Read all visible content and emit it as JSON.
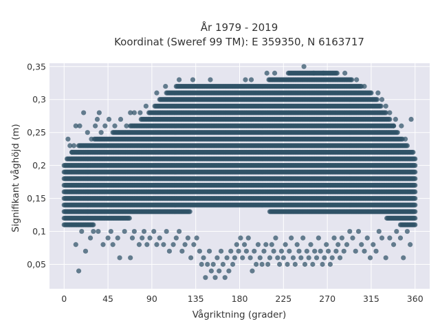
{
  "chart_data": {
    "type": "scatter",
    "title_lines": [
      "År 1979 - 2019",
      "Koordinat (Sweref 99 TM): E 359350, N 6163717"
    ],
    "xlabel": "Vågriktning (grader)",
    "ylabel": "Signifikant våghöjd (m)",
    "xlim": [
      -15,
      375
    ],
    "ylim": [
      0.013,
      0.355
    ],
    "xticks": [
      0,
      45,
      90,
      135,
      180,
      225,
      270,
      315,
      360
    ],
    "xtick_labels": [
      "0",
      "45",
      "90",
      "135",
      "180",
      "225",
      "270",
      "315",
      "360"
    ],
    "yticks": [
      0.05,
      0.1,
      0.15,
      0.2,
      0.25,
      0.3,
      0.35
    ],
    "ytick_labels": [
      "0,05",
      "0,1",
      "0,15",
      "0,2",
      "0,25",
      "0,3",
      "0,35"
    ],
    "grid": true,
    "point_color": "#2f5266",
    "direction_step": 1,
    "height_step": 0.01,
    "envelope": {
      "direction": [
        0,
        10,
        20,
        40,
        60,
        75,
        90,
        100,
        120,
        140,
        160,
        180,
        200,
        220,
        240,
        255,
        270,
        290,
        300,
        320,
        340,
        350,
        360
      ],
      "upper_height": [
        0.2,
        0.22,
        0.23,
        0.24,
        0.25,
        0.26,
        0.28,
        0.3,
        0.32,
        0.32,
        0.32,
        0.32,
        0.32,
        0.33,
        0.34,
        0.34,
        0.34,
        0.33,
        0.32,
        0.3,
        0.25,
        0.23,
        0.21
      ],
      "lower_height": [
        0.11,
        0.11,
        0.11,
        0.12,
        0.12,
        0.13,
        0.13,
        0.13,
        0.13,
        0.14,
        0.14,
        0.14,
        0.14,
        0.13,
        0.13,
        0.13,
        0.13,
        0.13,
        0.13,
        0.13,
        0.12,
        0.11,
        0.11
      ]
    },
    "sparse_points": [
      [
        15,
        0.04
      ],
      [
        22,
        0.07
      ],
      [
        27,
        0.09
      ],
      [
        12,
        0.08
      ],
      [
        18,
        0.1
      ],
      [
        30,
        0.1
      ],
      [
        35,
        0.1
      ],
      [
        40,
        0.08
      ],
      [
        45,
        0.09
      ],
      [
        48,
        0.1
      ],
      [
        50,
        0.08
      ],
      [
        55,
        0.09
      ],
      [
        57,
        0.06
      ],
      [
        62,
        0.1
      ],
      [
        68,
        0.06
      ],
      [
        70,
        0.09
      ],
      [
        72,
        0.1
      ],
      [
        77,
        0.08
      ],
      [
        80,
        0.09
      ],
      [
        82,
        0.1
      ],
      [
        85,
        0.08
      ],
      [
        88,
        0.09
      ],
      [
        92,
        0.1
      ],
      [
        95,
        0.08
      ],
      [
        98,
        0.09
      ],
      [
        102,
        0.08
      ],
      [
        105,
        0.1
      ],
      [
        108,
        0.07
      ],
      [
        112,
        0.08
      ],
      [
        115,
        0.09
      ],
      [
        118,
        0.1
      ],
      [
        121,
        0.07
      ],
      [
        124,
        0.08
      ],
      [
        127,
        0.09
      ],
      [
        130,
        0.06
      ],
      [
        133,
        0.08
      ],
      [
        136,
        0.09
      ],
      [
        139,
        0.07
      ],
      [
        141,
        0.05
      ],
      [
        143,
        0.06
      ],
      [
        145,
        0.03
      ],
      [
        147,
        0.05
      ],
      [
        149,
        0.07
      ],
      [
        151,
        0.04
      ],
      [
        153,
        0.05
      ],
      [
        155,
        0.03
      ],
      [
        157,
        0.06
      ],
      [
        159,
        0.04
      ],
      [
        161,
        0.07
      ],
      [
        163,
        0.05
      ],
      [
        165,
        0.03
      ],
      [
        167,
        0.06
      ],
      [
        169,
        0.04
      ],
      [
        171,
        0.07
      ],
      [
        173,
        0.05
      ],
      [
        175,
        0.06
      ],
      [
        177,
        0.08
      ],
      [
        179,
        0.07
      ],
      [
        181,
        0.09
      ],
      [
        183,
        0.06
      ],
      [
        185,
        0.08
      ],
      [
        187,
        0.07
      ],
      [
        189,
        0.09
      ],
      [
        191,
        0.06
      ],
      [
        193,
        0.04
      ],
      [
        195,
        0.07
      ],
      [
        197,
        0.05
      ],
      [
        199,
        0.08
      ],
      [
        201,
        0.06
      ],
      [
        203,
        0.05
      ],
      [
        205,
        0.07
      ],
      [
        207,
        0.08
      ],
      [
        209,
        0.05
      ],
      [
        211,
        0.06
      ],
      [
        213,
        0.08
      ],
      [
        215,
        0.07
      ],
      [
        217,
        0.09
      ],
      [
        219,
        0.06
      ],
      [
        221,
        0.05
      ],
      [
        223,
        0.07
      ],
      [
        225,
        0.06
      ],
      [
        227,
        0.08
      ],
      [
        229,
        0.05
      ],
      [
        231,
        0.07
      ],
      [
        233,
        0.09
      ],
      [
        235,
        0.06
      ],
      [
        237,
        0.05
      ],
      [
        239,
        0.08
      ],
      [
        241,
        0.07
      ],
      [
        243,
        0.06
      ],
      [
        245,
        0.09
      ],
      [
        247,
        0.05
      ],
      [
        249,
        0.07
      ],
      [
        251,
        0.06
      ],
      [
        253,
        0.08
      ],
      [
        255,
        0.05
      ],
      [
        257,
        0.07
      ],
      [
        259,
        0.06
      ],
      [
        261,
        0.09
      ],
      [
        263,
        0.07
      ],
      [
        265,
        0.05
      ],
      [
        267,
        0.06
      ],
      [
        269,
        0.08
      ],
      [
        271,
        0.07
      ],
      [
        273,
        0.05
      ],
      [
        275,
        0.06
      ],
      [
        277,
        0.09
      ],
      [
        279,
        0.07
      ],
      [
        281,
        0.08
      ],
      [
        283,
        0.06
      ],
      [
        285,
        0.09
      ],
      [
        287,
        0.07
      ],
      [
        290,
        0.08
      ],
      [
        293,
        0.1
      ],
      [
        296,
        0.09
      ],
      [
        299,
        0.07
      ],
      [
        302,
        0.1
      ],
      [
        305,
        0.08
      ],
      [
        308,
        0.07
      ],
      [
        311,
        0.09
      ],
      [
        314,
        0.06
      ],
      [
        317,
        0.08
      ],
      [
        320,
        0.07
      ],
      [
        323,
        0.1
      ],
      [
        326,
        0.09
      ],
      [
        330,
        0.06
      ],
      [
        334,
        0.09
      ],
      [
        338,
        0.08
      ],
      [
        341,
        0.1
      ],
      [
        345,
        0.09
      ],
      [
        348,
        0.06
      ],
      [
        352,
        0.1
      ],
      [
        355,
        0.08
      ]
    ],
    "outlier_points": [
      [
        4,
        0.24
      ],
      [
        6,
        0.23
      ],
      [
        8,
        0.22
      ],
      [
        10,
        0.23
      ],
      [
        12,
        0.26
      ],
      [
        16,
        0.26
      ],
      [
        20,
        0.28
      ],
      [
        24,
        0.25
      ],
      [
        28,
        0.24
      ],
      [
        32,
        0.26
      ],
      [
        34,
        0.27
      ],
      [
        36,
        0.28
      ],
      [
        38,
        0.25
      ],
      [
        42,
        0.26
      ],
      [
        46,
        0.27
      ],
      [
        52,
        0.26
      ],
      [
        58,
        0.27
      ],
      [
        64,
        0.26
      ],
      [
        68,
        0.28
      ],
      [
        72,
        0.28
      ],
      [
        78,
        0.28
      ],
      [
        84,
        0.29
      ],
      [
        95,
        0.31
      ],
      [
        104,
        0.32
      ],
      [
        118,
        0.33
      ],
      [
        132,
        0.33
      ],
      [
        150,
        0.33
      ],
      [
        186,
        0.33
      ],
      [
        192,
        0.33
      ],
      [
        208,
        0.34
      ],
      [
        216,
        0.34
      ],
      [
        246,
        0.35
      ],
      [
        256,
        0.34
      ],
      [
        266,
        0.34
      ],
      [
        288,
        0.34
      ],
      [
        300,
        0.33
      ],
      [
        308,
        0.32
      ],
      [
        322,
        0.31
      ],
      [
        326,
        0.3
      ],
      [
        330,
        0.29
      ],
      [
        334,
        0.28
      ],
      [
        338,
        0.26
      ],
      [
        340,
        0.27
      ],
      [
        346,
        0.26
      ],
      [
        350,
        0.24
      ],
      [
        356,
        0.27
      ],
      [
        358,
        0.22
      ]
    ]
  }
}
